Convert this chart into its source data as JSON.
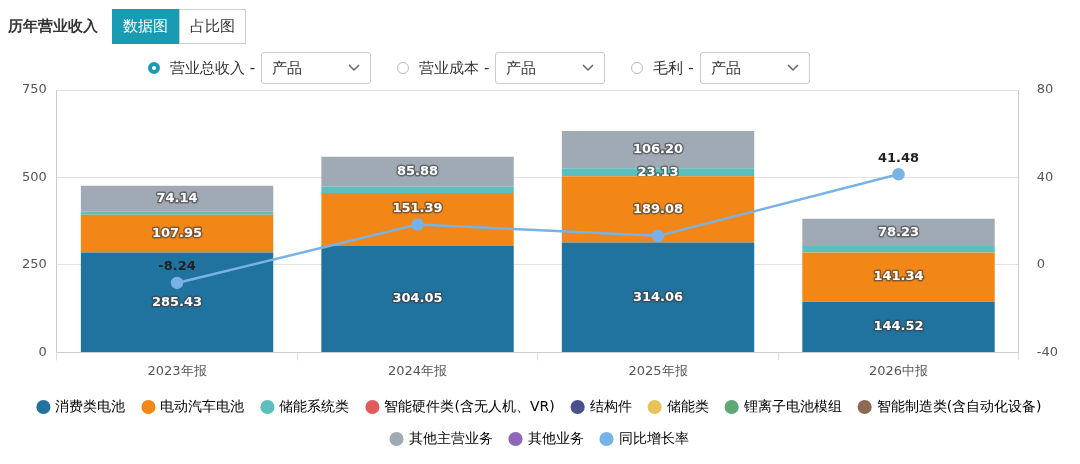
{
  "chart_data": {
    "type": "bar",
    "title": "历年营业收入",
    "stacked": true,
    "categories": [
      "2023年报",
      "2024年报",
      "2025年报",
      "2026中报"
    ],
    "series": [
      {
        "name": "消费类电池",
        "color": "#21739f",
        "values": [
          285.43,
          304.05,
          314.06,
          144.52
        ],
        "value_labels": [
          "285.43",
          "304.05",
          "314.06",
          "144.52"
        ]
      },
      {
        "name": "电动汽车电池",
        "color": "#f28718",
        "values": [
          107.95,
          151.39,
          189.08,
          141.34
        ],
        "value_labels": [
          "107.95",
          "151.39",
          "189.08",
          "141.34"
        ]
      },
      {
        "name": "储能系统类",
        "color": "#5cbfbd",
        "values": [
          9,
          18,
          23.13,
          18
        ],
        "value_labels": [
          null,
          null,
          "23.13",
          null
        ]
      },
      {
        "name": "智能硬件类(含无人机、VR)",
        "color": "#e05a5e",
        "values": [
          null,
          null,
          null,
          null
        ]
      },
      {
        "name": "结构件",
        "color": "#4b4f8c",
        "values": [
          null,
          null,
          null,
          null
        ]
      },
      {
        "name": "储能类",
        "color": "#e8c25a",
        "values": [
          null,
          null,
          null,
          null
        ]
      },
      {
        "name": "锂离子电池模组",
        "color": "#5fa777",
        "values": [
          null,
          null,
          null,
          null
        ]
      },
      {
        "name": "智能制造类(含自动化设备)",
        "color": "#8c6a52",
        "values": [
          null,
          null,
          null,
          null
        ]
      },
      {
        "name": "其他主营业务",
        "color": "#a0aab4",
        "values": [
          74.14,
          85.88,
          106.2,
          78.23
        ],
        "value_labels": [
          "74.14",
          "85.88",
          "106.20",
          "78.23"
        ]
      },
      {
        "name": "其他业务",
        "color": "#8e67b9",
        "values": [
          null,
          null,
          null,
          null
        ]
      },
      {
        "name": "同比增长率",
        "type": "line",
        "axis": "y2",
        "color": "#78b2e6",
        "values": [
          -8.24,
          18.5,
          13.3,
          41.48
        ],
        "value_labels": [
          "-8.24",
          null,
          null,
          "41.48"
        ]
      }
    ],
    "ylim": [
      0,
      750
    ],
    "yticks": [
      0,
      250,
      500,
      750
    ],
    "y2lim": [
      -40,
      80
    ],
    "y2ticks": [
      -40,
      0,
      40,
      80
    ],
    "grid": "y",
    "legend": "bottom",
    "marker": "circle",
    "annotations": [
      "数据图",
      "占比图",
      "营业总收入 -",
      "产品",
      "营业成本 -",
      "产品",
      "毛利 -",
      "产品"
    ]
  }
}
